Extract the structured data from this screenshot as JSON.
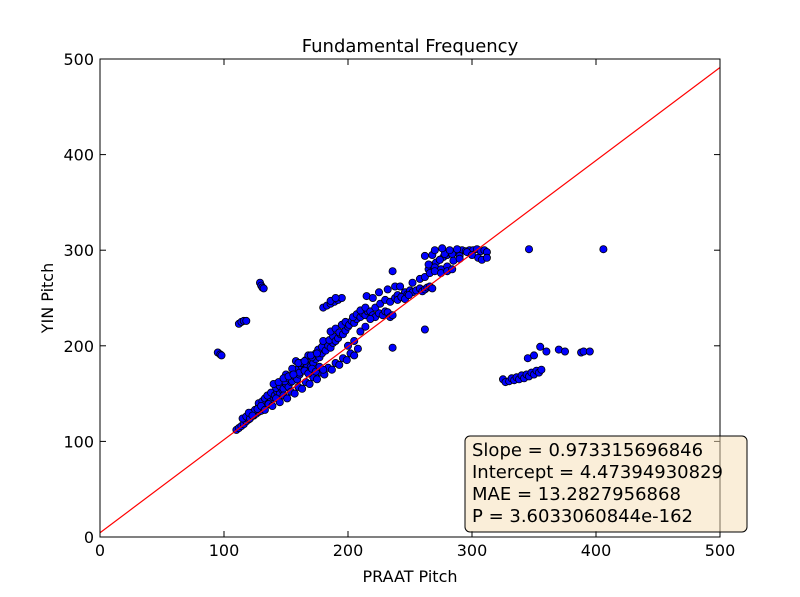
{
  "chart_data": {
    "type": "scatter",
    "title": "Fundamental Frequency",
    "xlabel": "PRAAT Pitch",
    "ylabel": "YIN Pitch",
    "xlim": [
      0,
      500
    ],
    "ylim": [
      0,
      500
    ],
    "xticks": [
      0,
      100,
      200,
      300,
      400,
      500
    ],
    "yticks": [
      0,
      100,
      200,
      300,
      400,
      500
    ],
    "grid": false,
    "point_color": "#0000ff",
    "point_edge_color": "#000000",
    "fit_color": "#ff0000",
    "fit_line": {
      "slope": 0.973315696846,
      "intercept": 4.47394930829
    },
    "annotation": {
      "lines": [
        "Slope = 0.973315696846",
        "Intercept = 4.47394930829",
        "MAE = 13.2827956868",
        "P = 3.6033060844e-162"
      ],
      "box_color": "#f5deb3",
      "placement": "bottom-right"
    },
    "points": [
      [
        95,
        193
      ],
      [
        97,
        191
      ],
      [
        98,
        190
      ],
      [
        112,
        223
      ],
      [
        114,
        225
      ],
      [
        116,
        226
      ],
      [
        118,
        226
      ],
      [
        129,
        266
      ],
      [
        130,
        263
      ],
      [
        131,
        261
      ],
      [
        132,
        260
      ],
      [
        110,
        112
      ],
      [
        112,
        114
      ],
      [
        114,
        116
      ],
      [
        116,
        118
      ],
      [
        118,
        121
      ],
      [
        120,
        123
      ],
      [
        115,
        124
      ],
      [
        118,
        126
      ],
      [
        121,
        124
      ],
      [
        124,
        127
      ],
      [
        126,
        129
      ],
      [
        128,
        131
      ],
      [
        122,
        130
      ],
      [
        125,
        133
      ],
      [
        128,
        136
      ],
      [
        130,
        132
      ],
      [
        132,
        135
      ],
      [
        134,
        138
      ],
      [
        128,
        140
      ],
      [
        131,
        142
      ],
      [
        133,
        145
      ],
      [
        136,
        140
      ],
      [
        138,
        143
      ],
      [
        140,
        146
      ],
      [
        135,
        148
      ],
      [
        138,
        151
      ],
      [
        141,
        148
      ],
      [
        143,
        152
      ],
      [
        145,
        150
      ],
      [
        147,
        154
      ],
      [
        142,
        156
      ],
      [
        145,
        158
      ],
      [
        148,
        155
      ],
      [
        150,
        160
      ],
      [
        152,
        157
      ],
      [
        154,
        162
      ],
      [
        149,
        163
      ],
      [
        152,
        166
      ],
      [
        155,
        163
      ],
      [
        157,
        168
      ],
      [
        159,
        165
      ],
      [
        161,
        170
      ],
      [
        156,
        172
      ],
      [
        158,
        175
      ],
      [
        161,
        172
      ],
      [
        163,
        178
      ],
      [
        165,
        175
      ],
      [
        167,
        180
      ],
      [
        158,
        184
      ],
      [
        162,
        182
      ],
      [
        166,
        185
      ],
      [
        170,
        178
      ],
      [
        172,
        182
      ],
      [
        174,
        186
      ],
      [
        168,
        190
      ],
      [
        171,
        188
      ],
      [
        174,
        192
      ],
      [
        177,
        188
      ],
      [
        179,
        192
      ],
      [
        181,
        196
      ],
      [
        176,
        196
      ],
      [
        179,
        199
      ],
      [
        182,
        195
      ],
      [
        184,
        200
      ],
      [
        186,
        198
      ],
      [
        188,
        203
      ],
      [
        180,
        205
      ],
      [
        185,
        206
      ],
      [
        188,
        210
      ],
      [
        190,
        205
      ],
      [
        192,
        208
      ],
      [
        194,
        212
      ],
      [
        186,
        215
      ],
      [
        190,
        218
      ],
      [
        193,
        214
      ],
      [
        196,
        212
      ],
      [
        198,
        216
      ],
      [
        200,
        220
      ],
      [
        195,
        222
      ],
      [
        198,
        225
      ],
      [
        201,
        222
      ],
      [
        203,
        226
      ],
      [
        205,
        224
      ],
      [
        207,
        228
      ],
      [
        204,
        230
      ],
      [
        207,
        233
      ],
      [
        210,
        230
      ],
      [
        212,
        234
      ],
      [
        214,
        232
      ],
      [
        216,
        236
      ],
      [
        210,
        237
      ],
      [
        214,
        240
      ],
      [
        218,
        236
      ],
      [
        220,
        232
      ],
      [
        222,
        230
      ],
      [
        225,
        234
      ],
      [
        228,
        232
      ],
      [
        230,
        236
      ],
      [
        232,
        235
      ],
      [
        234,
        230
      ],
      [
        236,
        232
      ],
      [
        222,
        240
      ],
      [
        226,
        244
      ],
      [
        230,
        248
      ],
      [
        234,
        246
      ],
      [
        238,
        250
      ],
      [
        240,
        253
      ],
      [
        244,
        252
      ],
      [
        246,
        256
      ],
      [
        248,
        254
      ],
      [
        250,
        258
      ],
      [
        252,
        256
      ],
      [
        255,
        258
      ],
      [
        258,
        260
      ],
      [
        260,
        257
      ],
      [
        262,
        259
      ],
      [
        264,
        261
      ],
      [
        266,
        262
      ],
      [
        268,
        260
      ],
      [
        240,
        248
      ],
      [
        243,
        251
      ],
      [
        246,
        249
      ],
      [
        249,
        253
      ],
      [
        120,
        130
      ],
      [
        123,
        127
      ],
      [
        127,
        134
      ],
      [
        130,
        137
      ],
      [
        133,
        133
      ],
      [
        136,
        139
      ],
      [
        139,
        137
      ],
      [
        142,
        145
      ],
      [
        145,
        141
      ],
      [
        148,
        148
      ],
      [
        151,
        145
      ],
      [
        154,
        152
      ],
      [
        157,
        150
      ],
      [
        160,
        157
      ],
      [
        163,
        155
      ],
      [
        166,
        162
      ],
      [
        169,
        160
      ],
      [
        172,
        167
      ],
      [
        175,
        165
      ],
      [
        178,
        172
      ],
      [
        181,
        170
      ],
      [
        184,
        177
      ],
      [
        187,
        175
      ],
      [
        190,
        182
      ],
      [
        193,
        180
      ],
      [
        196,
        187
      ],
      [
        199,
        185
      ],
      [
        202,
        192
      ],
      [
        205,
        190
      ],
      [
        208,
        197
      ],
      [
        150,
        170
      ],
      [
        155,
        176
      ],
      [
        160,
        182
      ],
      [
        165,
        184
      ],
      [
        170,
        190
      ],
      [
        175,
        192
      ],
      [
        165,
        174
      ],
      [
        168,
        171
      ],
      [
        171,
        176
      ],
      [
        174,
        173
      ],
      [
        177,
        178
      ],
      [
        180,
        175
      ],
      [
        140,
        160
      ],
      [
        144,
        162
      ],
      [
        148,
        166
      ],
      [
        152,
        168
      ],
      [
        156,
        170
      ],
      [
        180,
        240
      ],
      [
        183,
        242
      ],
      [
        186,
        244
      ],
      [
        189,
        246
      ],
      [
        192,
        248
      ],
      [
        195,
        250
      ],
      [
        186,
        247
      ],
      [
        190,
        250
      ],
      [
        200,
        200
      ],
      [
        205,
        205
      ],
      [
        210,
        215
      ],
      [
        214,
        220
      ],
      [
        218,
        228
      ],
      [
        236,
        198
      ],
      [
        236,
        278
      ],
      [
        262,
        217
      ],
      [
        215,
        252
      ],
      [
        220,
        250
      ],
      [
        225,
        256
      ],
      [
        232,
        259
      ],
      [
        238,
        262
      ],
      [
        242,
        262
      ],
      [
        252,
        266
      ],
      [
        258,
        270
      ],
      [
        262,
        272
      ],
      [
        265,
        280
      ],
      [
        268,
        284
      ],
      [
        271,
        287
      ],
      [
        274,
        290
      ],
      [
        277,
        293
      ],
      [
        280,
        295
      ],
      [
        283,
        297
      ],
      [
        286,
        298
      ],
      [
        289,
        300
      ],
      [
        292,
        300
      ],
      [
        295,
        299
      ],
      [
        298,
        300
      ],
      [
        301,
        300
      ],
      [
        304,
        301
      ],
      [
        307,
        299
      ],
      [
        310,
        300
      ],
      [
        312,
        298
      ],
      [
        262,
        294
      ],
      [
        268,
        295
      ],
      [
        274,
        290
      ],
      [
        278,
        296
      ],
      [
        284,
        296
      ],
      [
        290,
        294
      ],
      [
        296,
        298
      ],
      [
        300,
        295
      ],
      [
        305,
        292
      ],
      [
        308,
        290
      ],
      [
        312,
        292
      ],
      [
        265,
        285
      ],
      [
        270,
        282
      ],
      [
        275,
        280
      ],
      [
        280,
        283
      ],
      [
        285,
        289
      ],
      [
        290,
        291
      ],
      [
        270,
        300
      ],
      [
        276,
        302
      ],
      [
        282,
        300
      ],
      [
        288,
        301
      ],
      [
        266,
        276
      ],
      [
        270,
        278
      ],
      [
        275,
        276
      ],
      [
        280,
        278
      ],
      [
        284,
        280
      ],
      [
        346,
        301
      ],
      [
        406,
        301
      ],
      [
        325,
        165
      ],
      [
        327,
        162
      ],
      [
        330,
        163
      ],
      [
        332,
        166
      ],
      [
        334,
        164
      ],
      [
        336,
        167
      ],
      [
        338,
        165
      ],
      [
        340,
        169
      ],
      [
        342,
        166
      ],
      [
        344,
        170
      ],
      [
        346,
        168
      ],
      [
        348,
        172
      ],
      [
        350,
        170
      ],
      [
        352,
        174
      ],
      [
        354,
        172
      ],
      [
        356,
        175
      ],
      [
        345,
        187
      ],
      [
        350,
        190
      ],
      [
        355,
        199
      ],
      [
        360,
        194
      ],
      [
        370,
        196
      ],
      [
        375,
        194
      ],
      [
        388,
        193
      ],
      [
        390,
        194
      ],
      [
        395,
        194
      ]
    ]
  }
}
